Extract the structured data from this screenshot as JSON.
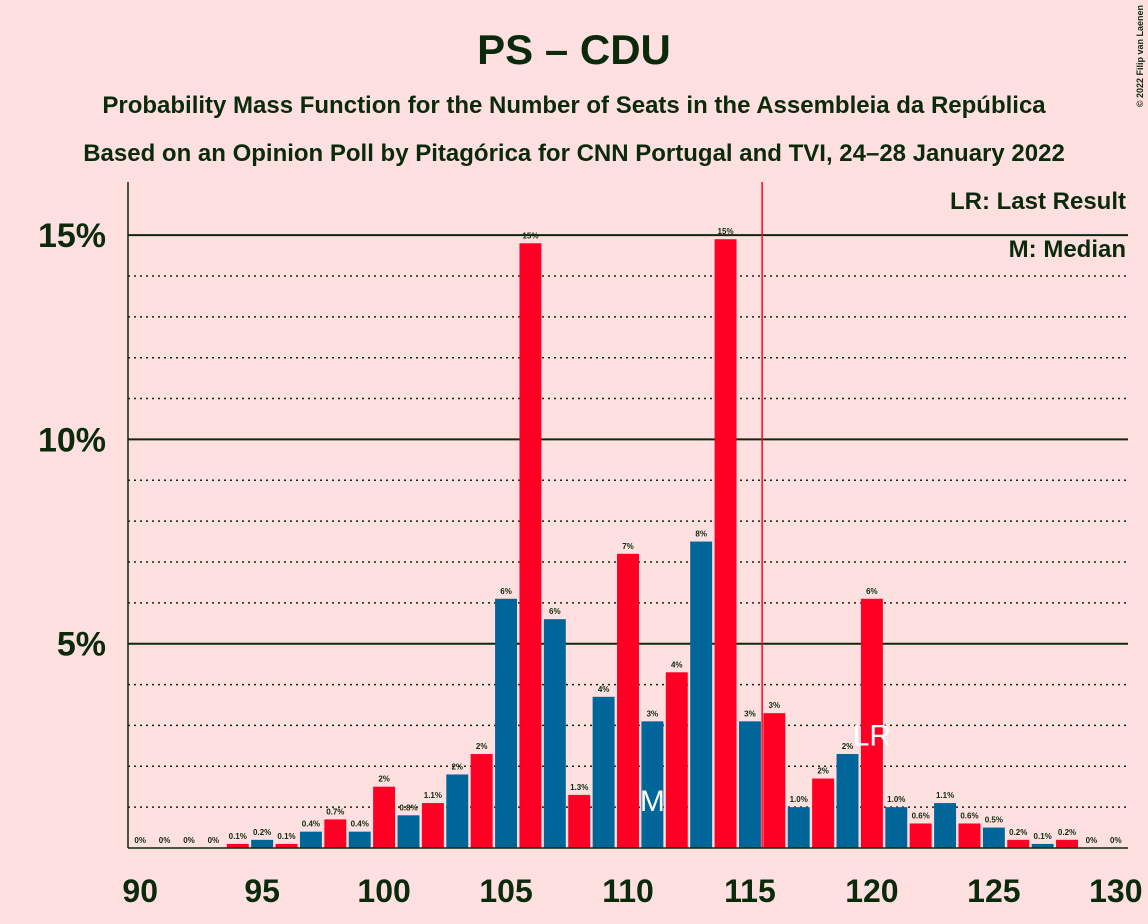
{
  "chart_data": {
    "type": "bar",
    "title": "PS – CDU",
    "subtitle": "Probability Mass Function for the Number of Seats in the Assembleia da República",
    "subtitle2": "Based on an Opinion Poll by Pitagórica for CNN Portugal and TVI, 24–28 January 2022",
    "copyright": "© 2022 Filip van Laenen",
    "legend": [
      "LR: Last Result",
      "M: Median"
    ],
    "x": [
      90,
      91,
      92,
      93,
      94,
      95,
      96,
      97,
      98,
      99,
      100,
      101,
      102,
      103,
      104,
      105,
      106,
      107,
      108,
      109,
      110,
      111,
      112,
      113,
      114,
      115,
      116,
      117,
      118,
      119,
      120,
      121,
      122,
      123,
      124,
      125,
      126,
      127,
      128,
      129,
      130
    ],
    "values": [
      0,
      0,
      0,
      0,
      0.1,
      0.2,
      0.1,
      0.4,
      0.7,
      0.4,
      1.5,
      0.8,
      1.1,
      1.8,
      2.3,
      6.1,
      14.8,
      5.6,
      1.3,
      3.7,
      7.2,
      3.1,
      4.3,
      7.5,
      14.9,
      3.1,
      3.3,
      1.0,
      1.7,
      2.3,
      6.1,
      1.0,
      0.6,
      1.1,
      0.6,
      0.5,
      0.2,
      0.1,
      0.2,
      0,
      0
    ],
    "value_labels": [
      "0%",
      "0%",
      "0%",
      "0%",
      "0.1%",
      "0.2%",
      "0.1%",
      "0.4%",
      "0.7%",
      "0.4%",
      "2%",
      "0.8%",
      "1.1%",
      "2%",
      "2%",
      "6%",
      "15%",
      "6%",
      "1.3%",
      "4%",
      "7%",
      "3%",
      "4%",
      "8%",
      "15%",
      "3%",
      "3%",
      "1.0%",
      "2%",
      "2%",
      "6%",
      "1.0%",
      "0.6%",
      "1.1%",
      "0.6%",
      "0.5%",
      "0.2%",
      "0.1%",
      "0.2%",
      "0%",
      "0%"
    ],
    "palette": [
      "#ff0025",
      "#006699"
    ],
    "median": {
      "x": 111,
      "label": "M"
    },
    "last_result": {
      "x": 120,
      "label": "LR"
    },
    "majority_line": 116,
    "xlim": [
      89.5,
      130.5
    ],
    "xticks": [
      90,
      95,
      100,
      105,
      110,
      115,
      120,
      125,
      130
    ],
    "ylim": [
      0,
      16.3
    ],
    "yticks": [
      {
        "value": 5,
        "label": "5%"
      },
      {
        "value": 10,
        "label": "10%"
      },
      {
        "value": 15,
        "label": "15%"
      }
    ],
    "minor_yticks": [
      1,
      2,
      3,
      4,
      6,
      7,
      8,
      9,
      11,
      12,
      13,
      14
    ],
    "grid": true
  }
}
